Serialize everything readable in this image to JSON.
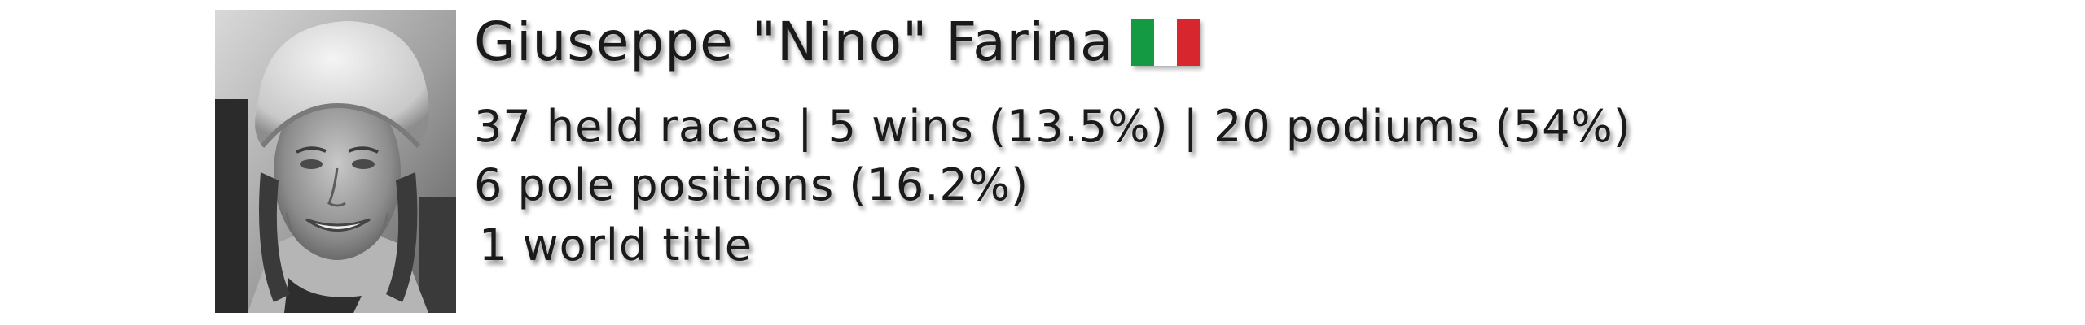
{
  "driver": {
    "name": "Giuseppe \"Nino\" Farina",
    "flag": {
      "country": "Italy",
      "colors": [
        "#139a43",
        "#ffffff",
        "#d8262e"
      ]
    },
    "photo_subject": "driver-portrait",
    "stats_line_1": "37 held races | 5 wins (13.5%) | 20 podiums (54%)",
    "stats_line_2": "6 pole positions (16.2%)",
    "stats_line_3": "1 world title"
  }
}
